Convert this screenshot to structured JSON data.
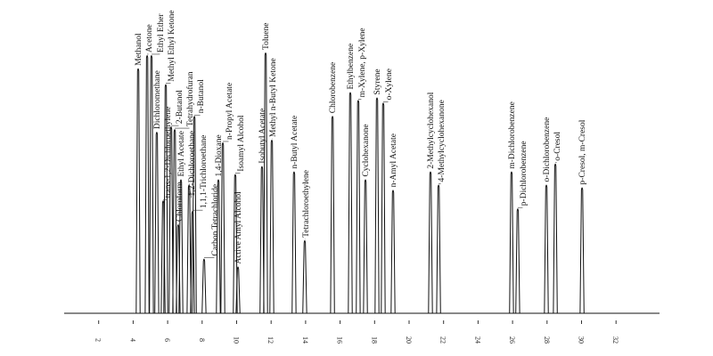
{
  "chart_data": {
    "type": "line",
    "title": "",
    "xlabel": "",
    "ylabel": "",
    "xlim": [
      0,
      34.5
    ],
    "ylim": [
      0,
      100
    ],
    "grid": false,
    "legend": "none",
    "x_ticks": [
      "2",
      "4",
      "6",
      "8",
      "10",
      "12",
      "14",
      "16",
      "18",
      "20",
      "22",
      "24",
      "26",
      "28",
      "30",
      "32"
    ],
    "x_tick_values": [
      2,
      4,
      6,
      8,
      10,
      12,
      14,
      16,
      18,
      20,
      22,
      24,
      26,
      28,
      30,
      32
    ],
    "line_color": "#111111",
    "peaks": [
      {
        "label": "Methanol",
        "x": 4.29,
        "y": 93
      },
      {
        "label": "Acetone",
        "x": 4.81,
        "y": 98
      },
      {
        "label": "Ethyl Ether",
        "x": 5.06,
        "y": 98
      },
      {
        "label": "Dichloromethane",
        "x": 5.37,
        "y": 69
      },
      {
        "label": "trans-1,2-Dichloroethylene",
        "x": 5.74,
        "y": 43
      },
      {
        "label": "Methyl Ethyl Ketone",
        "x": 5.89,
        "y": 87
      },
      {
        "label": "2-Butanol",
        "x": 6.2,
        "y": 71
      },
      {
        "label": "Tetrahydrofuran",
        "x": 6.41,
        "y": 70
      },
      {
        "label": "Chloroform",
        "x": 6.61,
        "y": 34
      },
      {
        "label": "Ethyl Acetate",
        "x": 6.77,
        "y": 51
      },
      {
        "label": "1,2-Dichloroethane",
        "x": 7.24,
        "y": 49
      },
      {
        "label": "1,1,1-Trichloroethane",
        "x": 7.44,
        "y": 39
      },
      {
        "label": "n-Butanol",
        "x": 7.55,
        "y": 75
      },
      {
        "label": "Carbon Tetrachloride",
        "x": 8.11,
        "y": 21
      },
      {
        "label": "1,4-Dioxane",
        "x": 8.94,
        "y": 51
      },
      {
        "label": "n-Propyl Acetate",
        "x": 9.2,
        "y": 65
      },
      {
        "label": "Isoamyl Alcohol",
        "x": 9.92,
        "y": 53
      },
      {
        "label": "Active Amyl Alcohol",
        "x": 10.08,
        "y": 18
      },
      {
        "label": "Isobutyl Acetate",
        "x": 11.47,
        "y": 56
      },
      {
        "label": "Toluene",
        "x": 11.68,
        "y": 99
      },
      {
        "label": "Methyl n-Butyl Ketone",
        "x": 12.04,
        "y": 66
      },
      {
        "label": "n-Butyl Acetate",
        "x": 13.33,
        "y": 54
      },
      {
        "label": "Tetrachloroethylene",
        "x": 13.95,
        "y": 28
      },
      {
        "label": "Chlorobenzene",
        "x": 15.56,
        "y": 75
      },
      {
        "label": "Ethylbenzene",
        "x": 16.59,
        "y": 84
      },
      {
        "label": "m-Xylene, p-Xylene",
        "x": 17.05,
        "y": 81
      },
      {
        "label": "Cyclohexanone",
        "x": 17.47,
        "y": 51
      },
      {
        "label": "Styrene",
        "x": 18.14,
        "y": 82
      },
      {
        "label": "o-Xylene",
        "x": 18.5,
        "y": 80
      },
      {
        "label": "n-Amyl Acetate",
        "x": 19.07,
        "y": 47
      },
      {
        "label": "2-Methylcyclohexanol",
        "x": 21.24,
        "y": 54
      },
      {
        "label": "4-Methylcyclohexanone",
        "x": 21.71,
        "y": 49
      },
      {
        "label": "m-Dichlorobenzene",
        "x": 25.94,
        "y": 54
      },
      {
        "label": "p-Dichlorobenzene",
        "x": 26.3,
        "y": 40
      },
      {
        "label": "o-Dichlorobenzene",
        "x": 27.96,
        "y": 49
      },
      {
        "label": "o-Cresol",
        "x": 28.48,
        "y": 57
      },
      {
        "label": "p-Cresol, m-Cresol",
        "x": 30.03,
        "y": 48
      }
    ]
  }
}
